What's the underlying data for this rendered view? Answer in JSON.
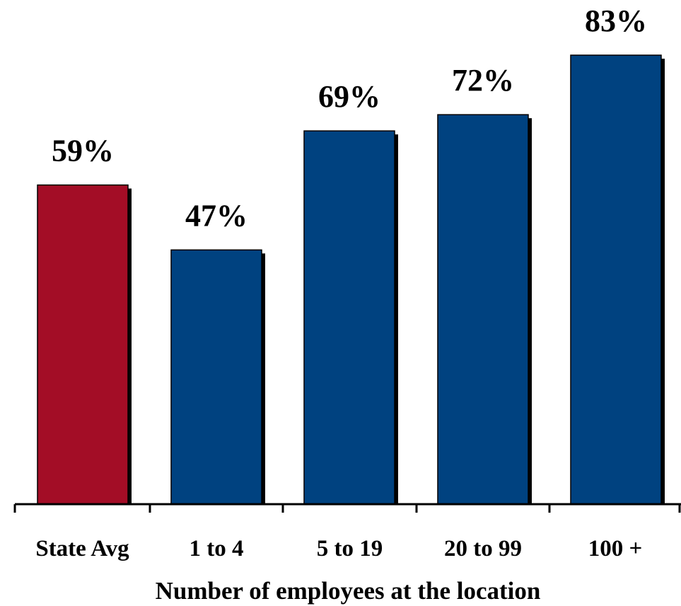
{
  "chart_data": {
    "type": "bar",
    "title": "",
    "xlabel": "Number of employees at the location",
    "ylabel": "",
    "categories": [
      "State Avg",
      "1 to 4",
      "5 to 19",
      "20 to 99",
      "100 +"
    ],
    "values": [
      59,
      47,
      69,
      72,
      83
    ],
    "value_labels": [
      "59%",
      "47%",
      "69%",
      "72%",
      "83%"
    ],
    "unit": "%",
    "ylim": [
      0,
      100
    ],
    "grid": false,
    "legend": "none",
    "bar_colors": [
      "#A30D26",
      "#004280",
      "#004280",
      "#004280",
      "#004280"
    ],
    "shadow_color": "#000000"
  }
}
